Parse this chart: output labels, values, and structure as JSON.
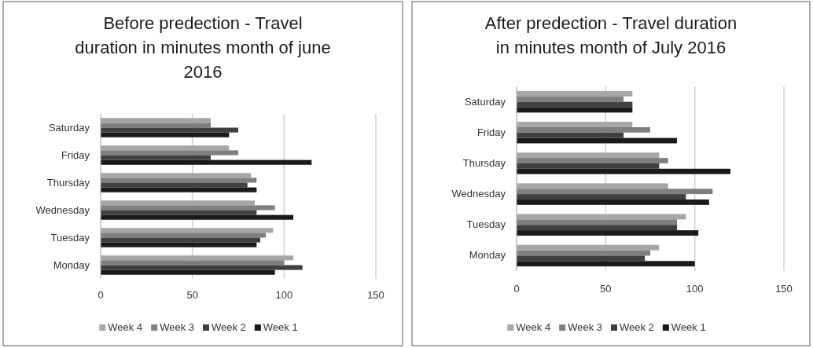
{
  "chart_data": [
    {
      "type": "bar",
      "orientation": "horizontal",
      "title": "Before predection - Travel duration in minutes month of june 2016",
      "categories": [
        "Saturday",
        "Friday",
        "Thursday",
        "Wednesday",
        "Tuesday",
        "Monday"
      ],
      "series": [
        {
          "name": "Week 4",
          "color": "#a6a6a6",
          "values": [
            60,
            70,
            82,
            84,
            94,
            105
          ]
        },
        {
          "name": "Week 3",
          "color": "#7f7f7f",
          "values": [
            60,
            75,
            85,
            95,
            90,
            100
          ]
        },
        {
          "name": "Week 2",
          "color": "#404040",
          "values": [
            75,
            60,
            80,
            85,
            87,
            110
          ]
        },
        {
          "name": "Week 1",
          "color": "#1a1a1a",
          "values": [
            70,
            115,
            85,
            105,
            85,
            95
          ]
        }
      ],
      "xlim": [
        0,
        150
      ],
      "xticks": [
        0,
        50,
        100,
        150
      ],
      "grid": "x",
      "legend": "bottom"
    },
    {
      "type": "bar",
      "orientation": "horizontal",
      "title": "After predection - Travel duration in minutes month of July 2016",
      "categories": [
        "Saturday",
        "Friday",
        "Thursday",
        "Wednesday",
        "Tuesday",
        "Monday"
      ],
      "series": [
        {
          "name": "Week 4",
          "color": "#a6a6a6",
          "values": [
            65,
            65,
            80,
            85,
            95,
            80
          ]
        },
        {
          "name": "Week 3",
          "color": "#7f7f7f",
          "values": [
            60,
            75,
            85,
            110,
            90,
            75
          ]
        },
        {
          "name": "Week 2",
          "color": "#404040",
          "values": [
            65,
            60,
            80,
            95,
            90,
            72
          ]
        },
        {
          "name": "Week 1",
          "color": "#1a1a1a",
          "values": [
            65,
            90,
            120,
            108,
            102,
            100
          ]
        }
      ],
      "xlim": [
        0,
        150
      ],
      "xticks": [
        0,
        50,
        100,
        150
      ],
      "grid": "x",
      "legend": "bottom"
    }
  ]
}
